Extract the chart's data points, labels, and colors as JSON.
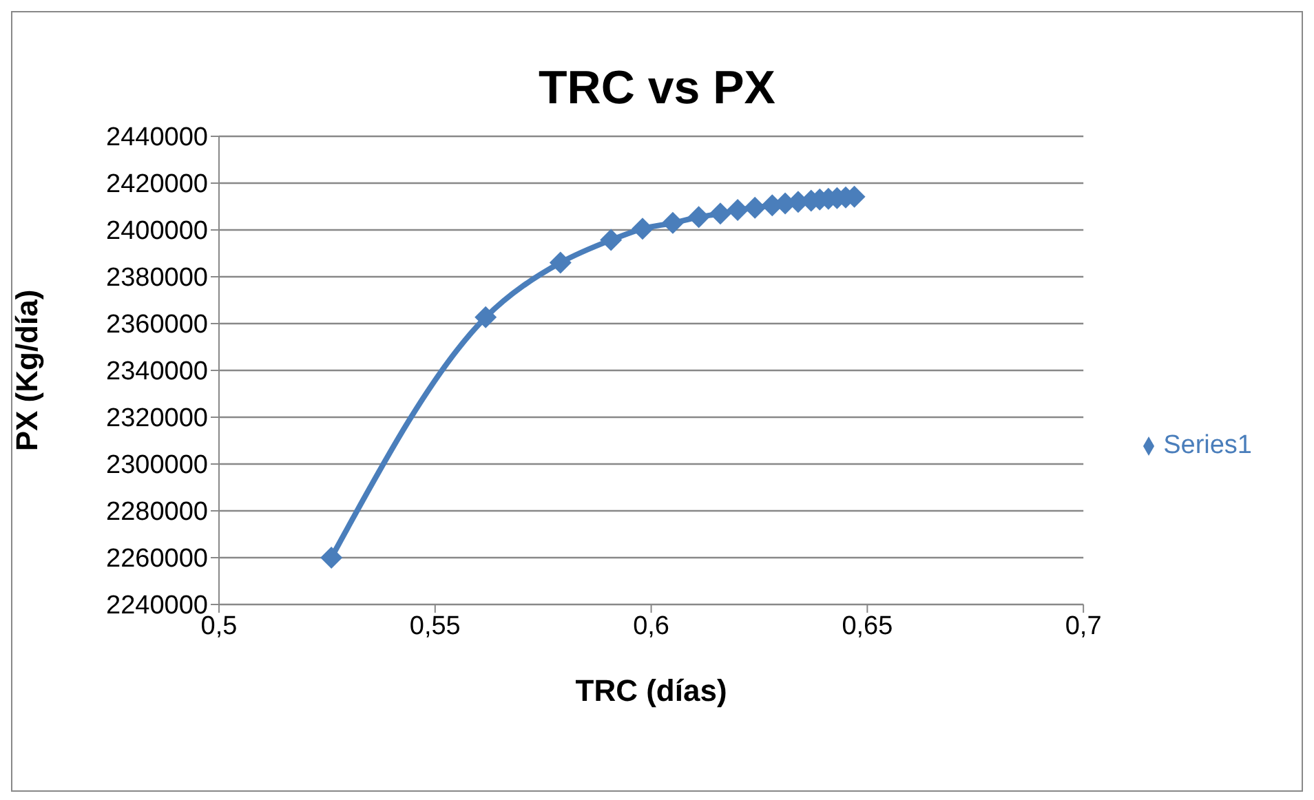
{
  "chart_data": {
    "type": "line",
    "title": "TRC vs PX",
    "xlabel": "TRC (días)",
    "ylabel": "PX (Kg/día)",
    "x": [
      0.526,
      0.5617,
      0.579,
      0.5907,
      0.598,
      0.605,
      0.611,
      0.616,
      0.62,
      0.624,
      0.628,
      0.631,
      0.634,
      0.637,
      0.639,
      0.641,
      0.643,
      0.645,
      0.647
    ],
    "series": [
      {
        "name": "Series1",
        "color": "#4a7ebb",
        "values": [
          2260000,
          2362700,
          2386000,
          2395700,
          2400500,
          2403000,
          2405500,
          2407000,
          2408500,
          2409500,
          2410500,
          2411300,
          2412000,
          2412500,
          2413000,
          2413300,
          2413600,
          2413900,
          2414200
        ]
      }
    ],
    "xlim": [
      0.5,
      0.7
    ],
    "xticks": [
      {
        "value": 0.5,
        "label": "0,5"
      },
      {
        "value": 0.55,
        "label": "0,55"
      },
      {
        "value": 0.6,
        "label": "0,6"
      },
      {
        "value": 0.65,
        "label": "0,65"
      },
      {
        "value": 0.7,
        "label": "0,7"
      }
    ],
    "ylim": [
      2240000,
      2440000
    ],
    "yticks": [
      2240000,
      2260000,
      2280000,
      2300000,
      2320000,
      2340000,
      2360000,
      2380000,
      2400000,
      2420000,
      2440000
    ],
    "grid": "y",
    "legend": "right",
    "marker": "diamond",
    "line_style": "solid"
  }
}
